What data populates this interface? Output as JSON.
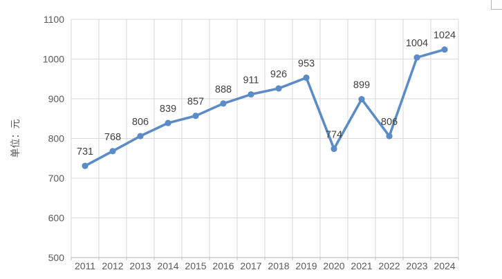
{
  "window": {
    "background_color": "#ffffff"
  },
  "decor": {
    "cropped_panel_corner_color": "#b7b7b7"
  },
  "chart_data": {
    "type": "line",
    "title": "",
    "categories": [
      "2011",
      "2012",
      "2013",
      "2014",
      "2015",
      "2016",
      "2017",
      "2018",
      "2019",
      "2020",
      "2021",
      "2022",
      "2023",
      "2024"
    ],
    "series": [
      {
        "name": "",
        "values": [
          731,
          768,
          806,
          839,
          857,
          888,
          911,
          926,
          953,
          774,
          899,
          806,
          1004,
          1024
        ]
      }
    ],
    "xlabel": "",
    "ylabel": "单位：元",
    "ylim": [
      500,
      1100
    ],
    "ytick_interval": 100,
    "ytick_labels": [
      "500",
      "600",
      "700",
      "800",
      "900",
      "1000",
      "1100"
    ],
    "grid": true,
    "legend_position": "none",
    "marker": "circle",
    "data_labels": true,
    "line_color": "#5b8cc6",
    "marker_color": "#5b8cc6",
    "gridline_color": "#d9d9d9",
    "axis_line_color": "#bfbfbf",
    "tick_label_color": "#595959",
    "data_label_color": "#404040",
    "axis_title_color": "#595959"
  }
}
